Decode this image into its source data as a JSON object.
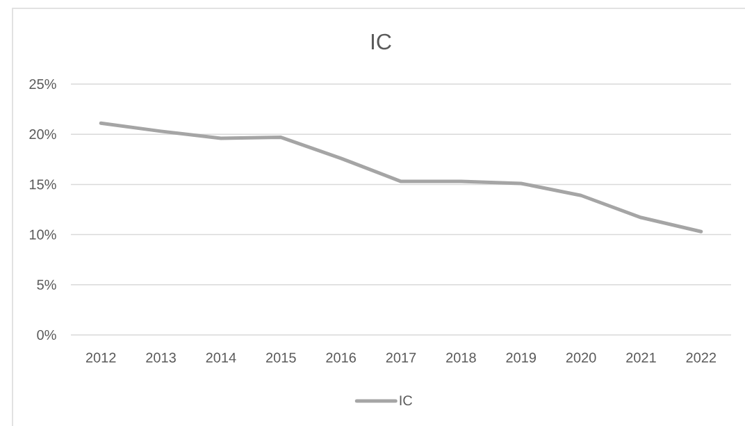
{
  "chart_data": {
    "type": "line",
    "title": "IC",
    "categories": [
      "2012",
      "2013",
      "2014",
      "2015",
      "2016",
      "2017",
      "2018",
      "2019",
      "2020",
      "2021",
      "2022"
    ],
    "series": [
      {
        "name": "IC",
        "color": "#a5a5a5",
        "values": [
          21.1,
          20.3,
          19.6,
          19.7,
          17.6,
          15.3,
          15.3,
          15.1,
          13.9,
          11.7,
          10.3
        ]
      }
    ],
    "ylim": [
      0,
      25
    ],
    "yticks": [
      {
        "value": 0,
        "label": "0%"
      },
      {
        "value": 5,
        "label": "5%"
      },
      {
        "value": 10,
        "label": "10%"
      },
      {
        "value": 15,
        "label": "15%"
      },
      {
        "value": 20,
        "label": "20%"
      },
      {
        "value": 25,
        "label": "25%"
      }
    ],
    "grid": "y",
    "legend": "bottom",
    "line_style": "solid"
  }
}
